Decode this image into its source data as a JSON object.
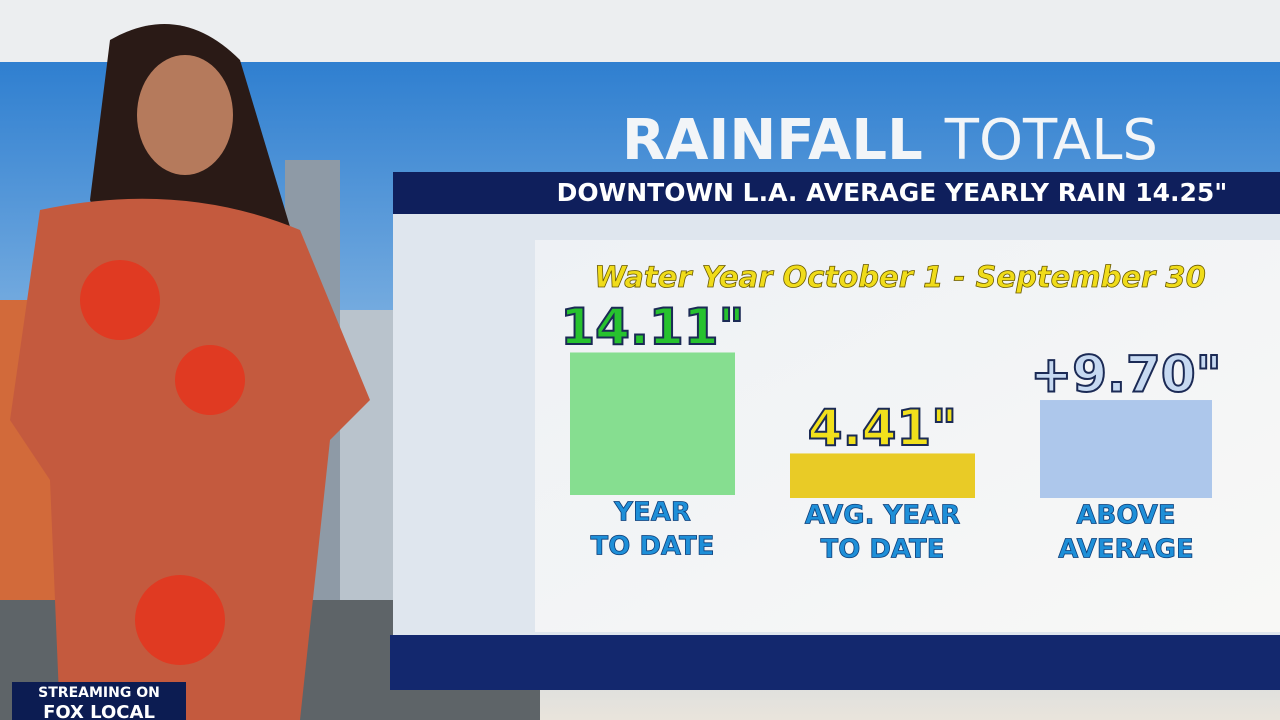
{
  "chart_data": {
    "type": "bar",
    "title": [
      "RAINFALL",
      "TOTALS"
    ],
    "subtitle": "DOWNTOWN L.A. AVERAGE YEARLY RAIN 14.25\"",
    "annotation": "Water Year October 1 - September 30",
    "categories": [
      [
        "YEAR",
        "TO DATE"
      ],
      [
        "AVG. YEAR",
        "TO DATE"
      ],
      [
        "ABOVE",
        "AVERAGE"
      ]
    ],
    "values": [
      14.11,
      4.41,
      9.7
    ],
    "value_labels": [
      "14.11\"",
      "4.41\"",
      "+9.70\""
    ],
    "colors": [
      "#7fdc8a",
      "#e8c81a",
      "#a9c4ea"
    ],
    "label_colors": [
      "#27c22e",
      "#f1e01c",
      "#c6d9f1"
    ]
  },
  "bug": {
    "line1": "STREAMING ON",
    "line2": "FOX LOCAL"
  }
}
